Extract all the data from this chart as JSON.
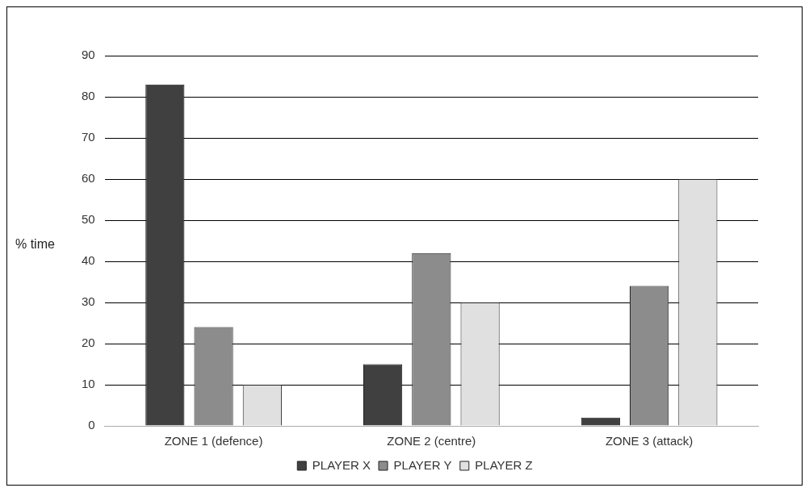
{
  "chart_data": {
    "type": "bar",
    "ylabel": "% time",
    "categories": [
      "ZONE 1 (defence)",
      "ZONE 2 (centre)",
      "ZONE 3 (attack)"
    ],
    "series": [
      {
        "name": "PLAYER X",
        "color": "#404040",
        "values": [
          83,
          15,
          2
        ]
      },
      {
        "name": "PLAYER Y",
        "color": "#8c8c8c",
        "values": [
          24,
          42,
          34
        ]
      },
      {
        "name": "PLAYER Z",
        "color": "#e0e0e0",
        "values": [
          10,
          30,
          60
        ]
      }
    ],
    "ylim": [
      0,
      90
    ],
    "yticks": [
      0,
      10,
      20,
      30,
      40,
      50,
      60,
      70,
      80,
      90
    ],
    "grid": "y",
    "legend": "bottom"
  }
}
